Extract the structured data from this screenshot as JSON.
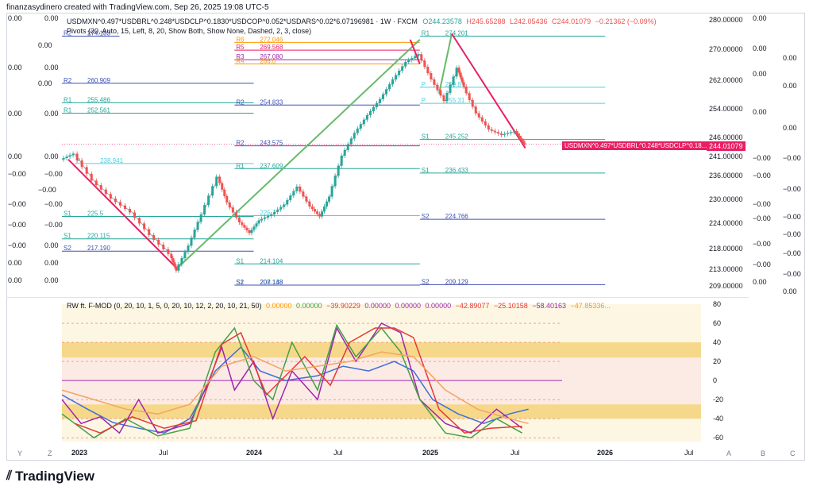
{
  "credit": "finanzasydinero created with TradingView.com, Sep 26, 2025 19:08 UTC-5",
  "header": {
    "symbol": "USDMXN^0.497*USDBRL^0.248*USDCLP^0.1830*USDCOP^0.052*USDARS^0.02*6.07196981 · 1W · FXCM",
    "open": "O244.23578",
    "high": "H245.65288",
    "low": "L242.05436",
    "close": "C244.01079",
    "change": "−0.21362 (−0.09%)",
    "pivots_label": "Pivots (20, Auto, 15, Left, 8, 20, Show Both, Show None, Dashed, 2, 3, close)"
  },
  "price_tag": {
    "label": "USDMXN^0.497*USDBRL^0.248*USDCLP^0.18...",
    "value": "244.01079"
  },
  "oscillator_header": {
    "name": "RW ft. F-MOD (0, 20, 10, 1, 5, 0, 20, 10, 12, 2, 20, 10, 21, 50)",
    "values": [
      "0.00000",
      "0.00000",
      "−39.90229",
      "0.00000",
      "0.00000",
      "0.00000",
      "−42.89077",
      "−25.10158",
      "−58.40163",
      "−47.85336..."
    ]
  },
  "colors": {
    "up": "#26a69a",
    "down": "#ef5350",
    "green_trend": "#66bb6a",
    "red_trend": "#e91e63",
    "pivot_r": "#3f51b5",
    "pivot_s": "#26a69a",
    "pivot_p": "#4dd0e1",
    "pivot_r6": "#ff9800",
    "pivot_r5": "#e91e63",
    "pivot_r3": "#9c27b0",
    "osc_blue": "#3f6fd8",
    "osc_purple": "#9c27b0",
    "osc_green": "#43a047",
    "osc_red": "#e53935"
  },
  "left_axis_labels": [
    "0.00",
    "0.00",
    "0.00",
    "0.00",
    "0.00",
    "0.00",
    "0.00",
    "0.00",
    "0.00",
    "0.00",
    "−0.00",
    "−0.00",
    "−0.00",
    "−0.00",
    "−0.00",
    "−0.00",
    "−0.00",
    "−0.00"
  ],
  "right_side_labels": [
    "0.00",
    "0.00",
    "0.00",
    "0.00",
    "0.00",
    "0.00",
    "0.00",
    "−0.00",
    "−0.00",
    "−0.00",
    "−0.00",
    "−0.00",
    "−0.00",
    "−0.00",
    "−0.00",
    "−0.00",
    "−0.00",
    "−0.00",
    "−0.00"
  ],
  "bottom_letters": {
    "left_y": "Y",
    "left_z": "Z",
    "right_a": "A",
    "right_b": "B",
    "right_c": "C"
  },
  "pivot_lines": [
    {
      "label": "R2",
      "value": "274.183",
      "y": 274.183,
      "x0": 0,
      "x1": 0.09,
      "color": "#3f51b5"
    },
    {
      "label": "R2",
      "value": "260.909",
      "y": 260.909,
      "x0": 0,
      "x1": 0.3,
      "color": "#3f51b5"
    },
    {
      "label": "R1",
      "value": "255.486",
      "y": 255.486,
      "x0": 0,
      "x1": 0.3,
      "color": "#26a69a"
    },
    {
      "label": "R1",
      "value": "252.561",
      "y": 252.561,
      "x0": 0,
      "x1": 0.3,
      "color": "#26a69a"
    },
    {
      "label": "S1",
      "value": "225.5",
      "y": 225.5,
      "x0": 0,
      "x1": 0.3,
      "color": "#26a69a"
    },
    {
      "label": "S1",
      "value": "220.115",
      "y": 220.115,
      "x0": 0,
      "x1": 0.3,
      "color": "#26a69a"
    },
    {
      "label": "S2",
      "value": "217.190",
      "y": 217.19,
      "x0": 0,
      "x1": 0.3,
      "color": "#3f51b5"
    },
    {
      "label": "P",
      "value": "238.941",
      "y": 238.941,
      "x0": 0.02,
      "x1": 0.3,
      "color": "#4dd0e1"
    },
    {
      "label": "R6",
      "value": "272.046",
      "y": 272.046,
      "x0": 0.27,
      "x1": 0.56,
      "color": "#ff9800"
    },
    {
      "label": "R5",
      "value": "269.568",
      "y": 269.568,
      "x0": 0.27,
      "x1": 0.56,
      "color": "#e91e63"
    },
    {
      "label": "R3",
      "value": "267.080",
      "y": 267.08,
      "x0": 0.27,
      "x1": 0.56,
      "color": "#9c27b0"
    },
    {
      "label": "R4",
      "value": "266.0",
      "y": 266.0,
      "x0": 0.27,
      "x1": 0.56,
      "color": "#ff9800"
    },
    {
      "label": "R2",
      "value": "254.833",
      "y": 254.833,
      "x0": 0.27,
      "x1": 0.56,
      "color": "#3f51b5"
    },
    {
      "label": "R2",
      "value": "243.575",
      "y": 243.575,
      "x0": 0.27,
      "x1": 0.56,
      "color": "#3f51b5"
    },
    {
      "label": "R1",
      "value": "237.609",
      "y": 237.609,
      "x0": 0.27,
      "x1": 0.56,
      "color": "#26a69a"
    },
    {
      "label": "S1",
      "value": "214.104",
      "y": 214.104,
      "x0": 0.27,
      "x1": 0.56,
      "color": "#26a69a"
    },
    {
      "label": "S1",
      "value": "208.138",
      "y": 208.138,
      "x0": 0.27,
      "x1": 0.56,
      "color": "#26a69a"
    },
    {
      "label": "S2",
      "value": "207.148",
      "y": 207.148,
      "x0": 0.27,
      "x1": 0.56,
      "color": "#3f51b5"
    },
    {
      "label": "P",
      "value": "225.7",
      "y": 225.7,
      "x0": 0.27,
      "x1": 0.56,
      "color": "#4dd0e1"
    },
    {
      "label": "R1",
      "value": "274.201",
      "y": 274.201,
      "x0": 0.56,
      "x1": 0.85,
      "color": "#26a69a"
    },
    {
      "label": "P",
      "value": "259.8",
      "y": 259.8,
      "x0": 0.56,
      "x1": 0.85,
      "color": "#4dd0e1"
    },
    {
      "label": "P",
      "value": "255.31",
      "y": 255.31,
      "x0": 0.56,
      "x1": 0.85,
      "color": "#4dd0e1"
    },
    {
      "label": "S1",
      "value": "245.252",
      "y": 245.252,
      "x0": 0.56,
      "x1": 0.85,
      "color": "#26a69a"
    },
    {
      "label": "S1",
      "value": "236.433",
      "y": 236.433,
      "x0": 0.56,
      "x1": 0.85,
      "color": "#26a69a"
    },
    {
      "label": "S2",
      "value": "224.766",
      "y": 224.766,
      "x0": 0.56,
      "x1": 0.85,
      "color": "#3f51b5"
    },
    {
      "label": "S2",
      "value": "209.129",
      "y": 209.129,
      "x0": 0.56,
      "x1": 0.85,
      "color": "#3f51b5"
    }
  ],
  "chart_data": {
    "type": "line",
    "title": "USDMXN^0.497*USDBRL^0.248*USDCLP^0.1830*USDCOP^0.052*USDARS^0.02*6.07196981",
    "interval": "1W",
    "x_ticks": [
      "2023",
      "Jul",
      "2024",
      "Jul",
      "2025",
      "Jul",
      "2026",
      "Jul"
    ],
    "y_ticks": [
      "280.00000",
      "270.00000",
      "262.00000",
      "254.00000",
      "246.00000",
      "241.00000",
      "236.00000",
      "230.00000",
      "224.00000",
      "218.00000",
      "213.00000",
      "209.00000"
    ],
    "last_price": 244.01079,
    "price_path": [
      [
        0.0,
        240.0
      ],
      [
        0.02,
        241.5
      ],
      [
        0.05,
        234.5
      ],
      [
        0.08,
        230.0
      ],
      [
        0.11,
        226.5
      ],
      [
        0.14,
        221.0
      ],
      [
        0.17,
        216.5
      ],
      [
        0.18,
        212.5
      ],
      [
        0.2,
        218.5
      ],
      [
        0.22,
        226.0
      ],
      [
        0.245,
        235.5
      ],
      [
        0.26,
        229.0
      ],
      [
        0.28,
        224.0
      ],
      [
        0.295,
        221.5
      ],
      [
        0.31,
        224.5
      ],
      [
        0.33,
        226.0
      ],
      [
        0.35,
        228.5
      ],
      [
        0.37,
        233.0
      ],
      [
        0.39,
        228.0
      ],
      [
        0.405,
        225.5
      ],
      [
        0.42,
        230.5
      ],
      [
        0.44,
        241.0
      ],
      [
        0.46,
        247.0
      ],
      [
        0.48,
        252.0
      ],
      [
        0.5,
        256.5
      ],
      [
        0.52,
        262.0
      ],
      [
        0.54,
        266.5
      ],
      [
        0.56,
        268.5
      ],
      [
        0.58,
        262.0
      ],
      [
        0.6,
        256.0
      ],
      [
        0.62,
        265.0
      ],
      [
        0.63,
        260.0
      ],
      [
        0.65,
        252.5
      ],
      [
        0.67,
        248.0
      ],
      [
        0.69,
        246.5
      ],
      [
        0.71,
        247.5
      ],
      [
        0.72,
        245.0
      ],
      [
        0.725,
        244.0
      ]
    ],
    "trend_lines": [
      {
        "color": "#e91e63",
        "points": [
          [
            0.01,
            240.0
          ],
          [
            0.18,
            213.0
          ]
        ]
      },
      {
        "color": "#66bb6a",
        "points": [
          [
            0.18,
            213.0
          ],
          [
            0.56,
            273.0
          ]
        ]
      },
      {
        "color": "#e91e63",
        "points": [
          [
            0.545,
            273.0
          ],
          [
            0.56,
            266.0
          ]
        ]
      },
      {
        "color": "#66bb6a",
        "points": [
          [
            0.59,
            258.0
          ],
          [
            0.61,
            275.0
          ]
        ]
      },
      {
        "color": "#e91e63",
        "points": [
          [
            0.61,
            275.0
          ],
          [
            0.725,
            243.0
          ]
        ]
      }
    ],
    "oscillator": {
      "y_ticks": [
        80,
        60,
        40,
        20,
        0,
        -20,
        -40,
        -60
      ],
      "ylim": [
        -64,
        80
      ],
      "series": [
        {
          "color": "#3f6fd8",
          "values": [
            [
              0.0,
              -15
            ],
            [
              0.04,
              -30
            ],
            [
              0.08,
              -44
            ],
            [
              0.12,
              -50
            ],
            [
              0.16,
              -55
            ],
            [
              0.2,
              -40
            ],
            [
              0.24,
              10
            ],
            [
              0.28,
              35
            ],
            [
              0.31,
              10
            ],
            [
              0.35,
              0
            ],
            [
              0.4,
              5
            ],
            [
              0.44,
              15
            ],
            [
              0.48,
              10
            ],
            [
              0.52,
              20
            ],
            [
              0.55,
              10
            ],
            [
              0.58,
              -20
            ],
            [
              0.62,
              -35
            ],
            [
              0.66,
              -45
            ],
            [
              0.7,
              -35
            ],
            [
              0.73,
              -30
            ]
          ]
        },
        {
          "color": "#9c27b0",
          "values": [
            [
              0.0,
              -20
            ],
            [
              0.03,
              -45
            ],
            [
              0.06,
              -38
            ],
            [
              0.09,
              -55
            ],
            [
              0.12,
              -20
            ],
            [
              0.15,
              -55
            ],
            [
              0.2,
              -45
            ],
            [
              0.23,
              0
            ],
            [
              0.25,
              35
            ],
            [
              0.27,
              -10
            ],
            [
              0.3,
              20
            ],
            [
              0.33,
              -40
            ],
            [
              0.36,
              10
            ],
            [
              0.4,
              -20
            ],
            [
              0.43,
              55
            ],
            [
              0.46,
              20
            ],
            [
              0.5,
              60
            ],
            [
              0.53,
              50
            ],
            [
              0.56,
              -20
            ],
            [
              0.6,
              -45
            ],
            [
              0.64,
              -55
            ],
            [
              0.68,
              -30
            ],
            [
              0.72,
              -50
            ]
          ]
        },
        {
          "color": "#43a047",
          "values": [
            [
              0.0,
              -35
            ],
            [
              0.05,
              -60
            ],
            [
              0.1,
              -40
            ],
            [
              0.15,
              -58
            ],
            [
              0.2,
              -50
            ],
            [
              0.24,
              30
            ],
            [
              0.27,
              55
            ],
            [
              0.3,
              0
            ],
            [
              0.33,
              -20
            ],
            [
              0.36,
              40
            ],
            [
              0.4,
              -10
            ],
            [
              0.43,
              58
            ],
            [
              0.46,
              25
            ],
            [
              0.5,
              55
            ],
            [
              0.53,
              30
            ],
            [
              0.56,
              -20
            ],
            [
              0.6,
              -55
            ],
            [
              0.64,
              -60
            ],
            [
              0.68,
              -40
            ],
            [
              0.72,
              -55
            ]
          ]
        },
        {
          "color": "#e53935",
          "values": [
            [
              0.02,
              -45
            ],
            [
              0.06,
              -55
            ],
            [
              0.11,
              -38
            ],
            [
              0.16,
              -50
            ],
            [
              0.21,
              -42
            ],
            [
              0.25,
              38
            ],
            [
              0.28,
              50
            ],
            [
              0.32,
              -15
            ],
            [
              0.38,
              25
            ],
            [
              0.42,
              -5
            ],
            [
              0.45,
              40
            ],
            [
              0.49,
              55
            ],
            [
              0.52,
              55
            ],
            [
              0.55,
              45
            ],
            [
              0.59,
              -30
            ],
            [
              0.63,
              -55
            ],
            [
              0.67,
              -50
            ],
            [
              0.72,
              -48
            ]
          ]
        },
        {
          "color": "#f4a460",
          "values": [
            [
              0.0,
              -10
            ],
            [
              0.05,
              -20
            ],
            [
              0.1,
              -30
            ],
            [
              0.15,
              -35
            ],
            [
              0.2,
              -25
            ],
            [
              0.25,
              15
            ],
            [
              0.3,
              25
            ],
            [
              0.35,
              10
            ],
            [
              0.4,
              15
            ],
            [
              0.45,
              20
            ],
            [
              0.5,
              30
            ],
            [
              0.55,
              25
            ],
            [
              0.6,
              -10
            ],
            [
              0.65,
              -30
            ],
            [
              0.7,
              -40
            ],
            [
              0.73,
              -45
            ]
          ]
        }
      ]
    }
  }
}
